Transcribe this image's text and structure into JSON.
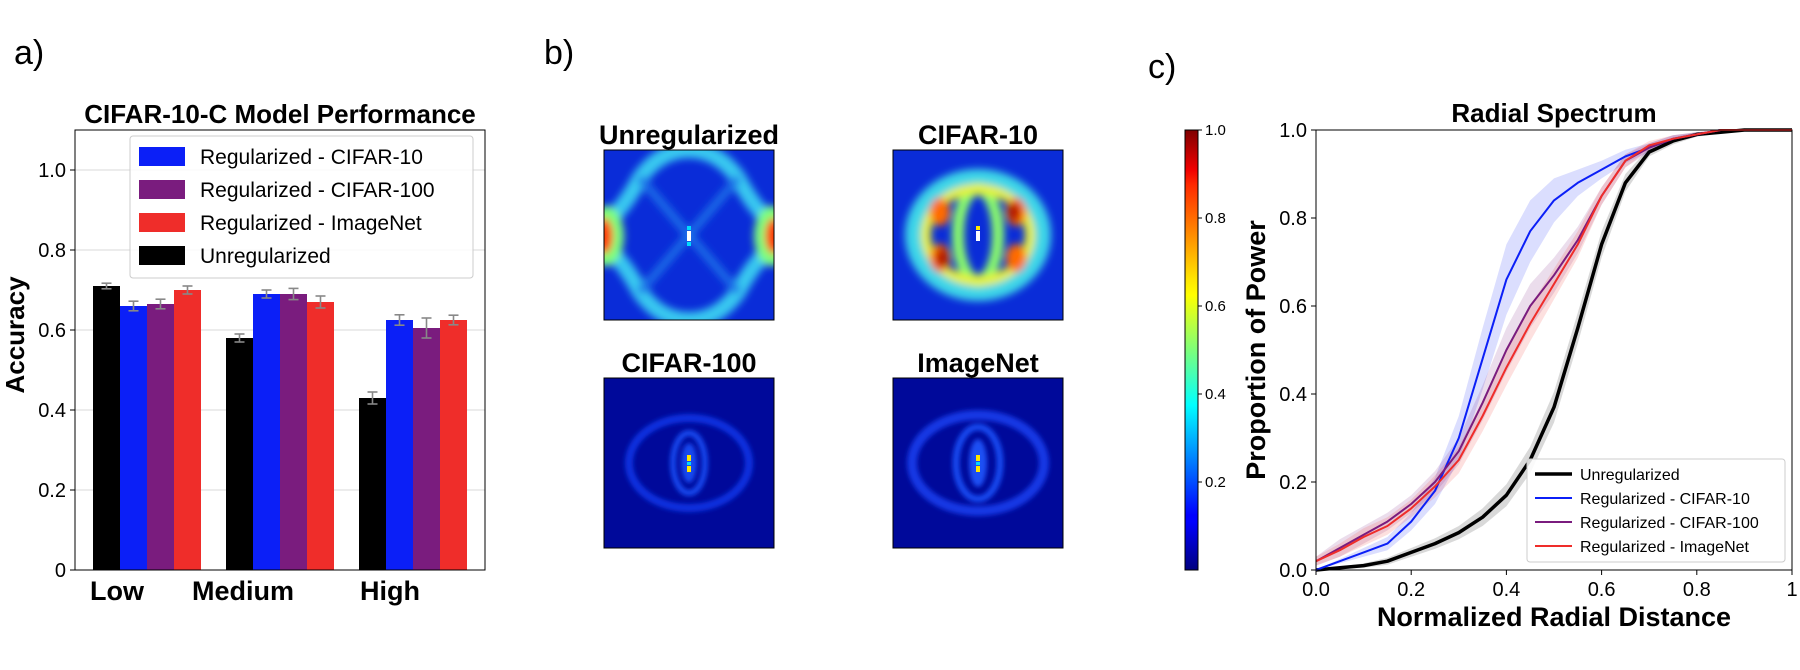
{
  "panels": {
    "a": "a)",
    "b": "b)",
    "c": "c)"
  },
  "colors": {
    "unreg": "#000000",
    "cifar10": "#0b1ff7",
    "cifar100": "#7a1c7e",
    "imagenet": "#ef2d2a",
    "errorbar": "#888888"
  },
  "chart_data": [
    {
      "type": "bar",
      "panel": "a",
      "title": "CIFAR-10-C Model Performance",
      "xlabel": "",
      "ylabel": "Accuracy",
      "ylim": [
        0,
        1.1
      ],
      "yticks": [
        0,
        0.2,
        0.4,
        0.6,
        0.8,
        1.0
      ],
      "ytick_labels": [
        "0",
        "0.2",
        "0.4",
        "0.6",
        "0.8",
        "1.0"
      ],
      "grid": true,
      "legend_position": "top-right",
      "categories": [
        "Low",
        "Medium",
        "High"
      ],
      "series": [
        {
          "key": "unreg",
          "name": "Unregularized",
          "values": [
            0.71,
            0.58,
            0.43
          ],
          "errors": [
            0.007,
            0.01,
            0.015
          ]
        },
        {
          "key": "cifar10",
          "name": "Regularized - CIFAR-10",
          "values": [
            0.66,
            0.69,
            0.625
          ],
          "errors": [
            0.012,
            0.01,
            0.013
          ]
        },
        {
          "key": "cifar100",
          "name": "Regularized - CIFAR-100",
          "values": [
            0.665,
            0.69,
            0.605
          ],
          "errors": [
            0.012,
            0.014,
            0.025
          ]
        },
        {
          "key": "imagenet",
          "name": "Regularized - ImageNet",
          "values": [
            0.7,
            0.67,
            0.625
          ],
          "errors": [
            0.01,
            0.015,
            0.012
          ]
        }
      ],
      "legend_order": [
        "cifar10",
        "cifar100",
        "imagenet",
        "unreg"
      ]
    },
    {
      "type": "heatmap",
      "panel": "b",
      "titles": [
        "Unregularized",
        "CIFAR-10",
        "CIFAR-100",
        "ImageNet"
      ],
      "colorbar": {
        "colormap": "jet",
        "range": [
          0,
          1.0
        ],
        "ticks": [
          0.2,
          0.4,
          0.6,
          0.8,
          1.0
        ],
        "tick_labels": [
          "0.2",
          "0.4",
          "0.6",
          "0.8",
          "1.0"
        ]
      }
    },
    {
      "type": "line",
      "panel": "c",
      "title": "Radial Spectrum",
      "xlabel": "Normalized Radial Distance",
      "ylabel": "Proportion of Power",
      "xlim": [
        0,
        1.0
      ],
      "ylim": [
        0,
        1.0
      ],
      "xticks": [
        0,
        0.2,
        0.4,
        0.6,
        0.8,
        1.0
      ],
      "xtick_labels": [
        "0.0",
        "0.2",
        "0.4",
        "0.6",
        "0.8",
        "1"
      ],
      "yticks": [
        0,
        0.2,
        0.4,
        0.6,
        0.8,
        1.0
      ],
      "ytick_labels": [
        "0.0",
        "0.2",
        "0.4",
        "0.6",
        "0.8",
        "1.0"
      ],
      "legend_position": "lower-right",
      "x": [
        0,
        0.05,
        0.1,
        0.15,
        0.2,
        0.25,
        0.3,
        0.35,
        0.4,
        0.45,
        0.5,
        0.55,
        0.6,
        0.65,
        0.7,
        0.75,
        0.8,
        0.85,
        0.9,
        0.95,
        1.0
      ],
      "series": [
        {
          "key": "unreg",
          "name": "Unregularized",
          "values": [
            0,
            0.005,
            0.01,
            0.02,
            0.04,
            0.06,
            0.085,
            0.12,
            0.17,
            0.25,
            0.37,
            0.55,
            0.74,
            0.88,
            0.95,
            0.975,
            0.99,
            0.995,
            1.0,
            1.0,
            1.0
          ],
          "band": [
            0,
            0.003,
            0.005,
            0.008,
            0.01,
            0.012,
            0.015,
            0.02,
            0.025,
            0.03,
            0.035,
            0.035,
            0.03,
            0.02,
            0.01,
            0.008,
            0.005,
            0.003,
            0,
            0,
            0
          ]
        },
        {
          "key": "cifar10",
          "name": "Regularized - CIFAR-10",
          "values": [
            0,
            0.02,
            0.04,
            0.06,
            0.11,
            0.18,
            0.3,
            0.48,
            0.66,
            0.77,
            0.84,
            0.88,
            0.91,
            0.94,
            0.96,
            0.98,
            0.99,
            1.0,
            1.0,
            1.0,
            1.0
          ],
          "band": [
            0,
            0.005,
            0.01,
            0.015,
            0.02,
            0.03,
            0.05,
            0.07,
            0.08,
            0.07,
            0.05,
            0.03,
            0.02,
            0.015,
            0.01,
            0.008,
            0.005,
            0,
            0,
            0,
            0
          ]
        },
        {
          "key": "cifar100",
          "name": "Regularized - CIFAR-100",
          "values": [
            0.02,
            0.05,
            0.08,
            0.11,
            0.15,
            0.2,
            0.27,
            0.38,
            0.5,
            0.6,
            0.67,
            0.75,
            0.85,
            0.93,
            0.96,
            0.98,
            0.99,
            1.0,
            1.0,
            1.0,
            1.0
          ],
          "band": [
            0.01,
            0.02,
            0.02,
            0.02,
            0.02,
            0.025,
            0.03,
            0.04,
            0.05,
            0.05,
            0.04,
            0.03,
            0.02,
            0.015,
            0.01,
            0.008,
            0.005,
            0,
            0,
            0,
            0
          ]
        },
        {
          "key": "imagenet",
          "name": "Regularized - ImageNet",
          "values": [
            0.02,
            0.045,
            0.075,
            0.1,
            0.14,
            0.19,
            0.25,
            0.35,
            0.46,
            0.56,
            0.65,
            0.74,
            0.85,
            0.93,
            0.965,
            0.98,
            0.99,
            1.0,
            1.0,
            1.0,
            1.0
          ],
          "band": [
            0.01,
            0.015,
            0.02,
            0.02,
            0.02,
            0.025,
            0.03,
            0.035,
            0.04,
            0.04,
            0.035,
            0.03,
            0.02,
            0.015,
            0.01,
            0.008,
            0.005,
            0,
            0,
            0,
            0
          ]
        }
      ]
    }
  ]
}
